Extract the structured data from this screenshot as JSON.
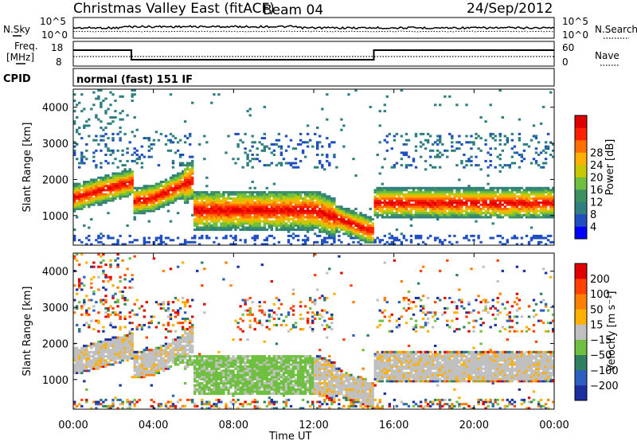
{
  "header": {
    "title": "Christmas Valley East (fitACF)",
    "beam": "Beam 04",
    "date": "24/Sep/2012"
  },
  "status_panels": {
    "nsky_label": "N.Sky",
    "nsearch_label": "N.Search",
    "freq_label_line1": "Freq.",
    "freq_label_line2": "[MHz]",
    "nave_label": "Nave",
    "cpid_label": "CPID",
    "cpid_value": "normal (fast) 151 IF",
    "noise_ticks_left": [
      "10^5",
      "10^0"
    ],
    "noise_ticks_right": [
      "10^5",
      "10^0"
    ],
    "freq_ticks": [
      "18",
      "8"
    ],
    "nave_ticks": [
      "60",
      "0"
    ]
  },
  "chart_data": [
    {
      "type": "heatmap",
      "name": "power-panel",
      "ylabel": "Slant Range [km]",
      "ylim": [
        180,
        4500
      ],
      "y_ticks": [
        1000,
        2000,
        3000,
        4000
      ],
      "xlim_hours": [
        0,
        24
      ],
      "colorbar_label": "Power [dB]",
      "colorbar_ticks": [
        "4",
        "8",
        "12",
        "16",
        "20",
        "24",
        "28"
      ],
      "colorbar_colors": [
        "#0000ff",
        "#1f4fc0",
        "#2f7f80",
        "#3e9060",
        "#6fc040",
        "#c8c800",
        "#ffb000",
        "#ff7000",
        "#ff2000",
        "#e00000"
      ]
    },
    {
      "type": "heatmap",
      "name": "velocity-panel",
      "ylabel": "Slant Range [km]",
      "ylim": [
        180,
        4500
      ],
      "y_ticks": [
        1000,
        2000,
        3000,
        4000
      ],
      "xlim_hours": [
        0,
        24
      ],
      "xlabel": "Time UT",
      "x_ticks": [
        "00:00",
        "04:00",
        "08:00",
        "12:00",
        "16:00",
        "20:00",
        "00:00"
      ],
      "colorbar_label": "Velocity [m s⁻¹]",
      "colorbar_ticks": [
        "200",
        "100",
        "50",
        "15",
        "−15",
        "−50",
        "−100",
        "−200"
      ],
      "colorbar_colors": [
        "#1c2fa0",
        "#2d5fc0",
        "#2f7f60",
        "#6fc040",
        "#c0c0c0",
        "#ffb000",
        "#ff8000",
        "#ff4000",
        "#e00000"
      ]
    }
  ]
}
